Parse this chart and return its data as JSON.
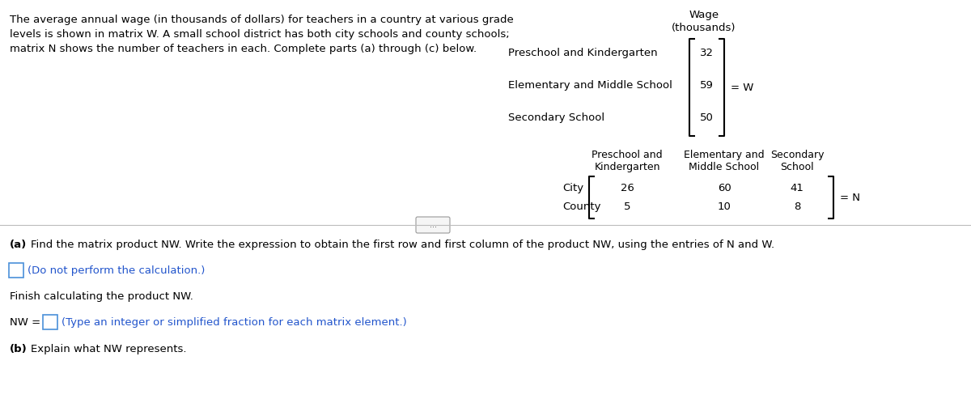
{
  "desc_lines": [
    "The average annual wage (in thousands of dollars) for teachers in a country at various grade",
    "levels is shown in matrix W. A small school district has both city schools and county schools;",
    "matrix N shows the number of teachers in each. Complete parts (a) through (c) below."
  ],
  "W_row_labels": [
    "Preschool and Kindergarten",
    "Elementary and Middle School",
    "Secondary School"
  ],
  "W_values": [
    "32",
    "59",
    "50"
  ],
  "W_header1": "Wage",
  "W_header2": "(thousands)",
  "W_label": "= W",
  "N_col1_line1": "Preschool and",
  "N_col1_line2": "Kindergarten",
  "N_col2_line1": "Elementary and",
  "N_col2_line2": "Middle School",
  "N_col3_line1": "Secondary",
  "N_col3_line2": "School",
  "N_row_labels": [
    "City",
    "County"
  ],
  "N_values": [
    [
      "26",
      "60",
      "41"
    ],
    [
      "5",
      "10",
      "8"
    ]
  ],
  "N_label": "= N",
  "part_a_text": "Find the matrix product NW. Write the expression to obtain the first row and first column of the product NW, using the entries of N and W.",
  "do_not_text": "(Do not perform the calculation.)",
  "finish_text": "Finish calculating the product NW.",
  "nw_label": "NW =",
  "nw_instruction": "(Type an integer or simplified fraction for each matrix element.)",
  "part_b_text": "Explain what NW represents.",
  "divider_button_text": "...",
  "bg_color": "#ffffff",
  "text_color": "#000000",
  "blue_color": "#2255cc",
  "bracket_color": "#000000",
  "input_box_color": "#4a90d9",
  "divider_color": "#bbbbbb"
}
